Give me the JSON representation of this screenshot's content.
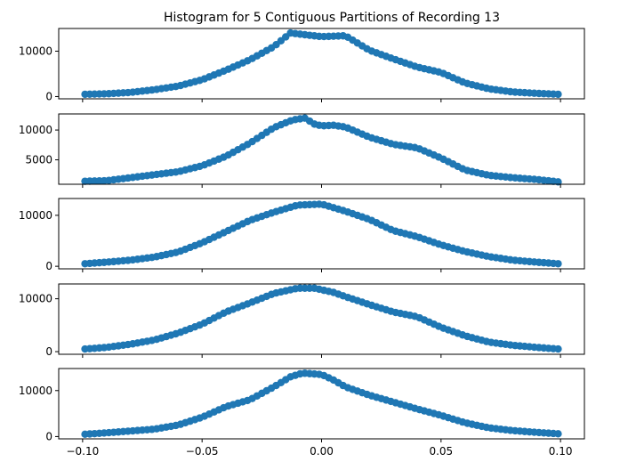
{
  "chart_data": {
    "type": "scatter",
    "title": "Histogram for 5 Contiguous Partitions of Recording 13",
    "xlabel": "",
    "ylabel": "",
    "xlim": [
      -0.11,
      0.11
    ],
    "x_ticks": [
      -0.1,
      -0.05,
      0.0,
      0.05,
      0.1
    ],
    "x_tick_labels": [
      "−0.10",
      "−0.05",
      "0.00",
      "0.05",
      "0.10"
    ],
    "marker_color": "#1f77b4",
    "grid": false,
    "x_range": [
      -0.099,
      0.099
    ],
    "n_points": 100,
    "panels": [
      {
        "ylim": [
          -500,
          15000
        ],
        "y_ticks": [
          0,
          10000
        ],
        "y_tick_labels": [
          "0",
          "10000"
        ],
        "profile": [
          [
            -0.099,
            500
          ],
          [
            -0.09,
            600
          ],
          [
            -0.08,
            900
          ],
          [
            -0.07,
            1500
          ],
          [
            -0.06,
            2300
          ],
          [
            -0.05,
            3700
          ],
          [
            -0.04,
            5800
          ],
          [
            -0.03,
            8100
          ],
          [
            -0.02,
            11000
          ],
          [
            -0.013,
            14000
          ],
          [
            -0.005,
            13500
          ],
          [
            0.0,
            13200
          ],
          [
            0.005,
            13300
          ],
          [
            0.01,
            13400
          ],
          [
            0.015,
            11800
          ],
          [
            0.02,
            10200
          ],
          [
            0.03,
            8300
          ],
          [
            0.04,
            6500
          ],
          [
            0.05,
            5300
          ],
          [
            0.06,
            3000
          ],
          [
            0.07,
            1700
          ],
          [
            0.08,
            1000
          ],
          [
            0.09,
            700
          ],
          [
            0.099,
            500
          ]
        ]
      },
      {
        "ylim": [
          900,
          12700
        ],
        "y_ticks": [
          5000,
          10000
        ],
        "y_tick_labels": [
          "5000",
          "10000"
        ],
        "profile": [
          [
            -0.099,
            1400
          ],
          [
            -0.09,
            1500
          ],
          [
            -0.08,
            2000
          ],
          [
            -0.07,
            2500
          ],
          [
            -0.06,
            3000
          ],
          [
            -0.05,
            4000
          ],
          [
            -0.04,
            5600
          ],
          [
            -0.03,
            7800
          ],
          [
            -0.02,
            10400
          ],
          [
            -0.012,
            11700
          ],
          [
            -0.007,
            12000
          ],
          [
            -0.003,
            11000
          ],
          [
            0.0,
            10700
          ],
          [
            0.005,
            10800
          ],
          [
            0.01,
            10500
          ],
          [
            0.02,
            8800
          ],
          [
            0.03,
            7600
          ],
          [
            0.035,
            7300
          ],
          [
            0.04,
            7000
          ],
          [
            0.05,
            5300
          ],
          [
            0.06,
            3300
          ],
          [
            0.07,
            2400
          ],
          [
            0.08,
            2000
          ],
          [
            0.09,
            1700
          ],
          [
            0.099,
            1300
          ]
        ]
      },
      {
        "ylim": [
          -500,
          13300
        ],
        "y_ticks": [
          0,
          10000
        ],
        "y_tick_labels": [
          "0",
          "10000"
        ],
        "profile": [
          [
            -0.099,
            500
          ],
          [
            -0.09,
            800
          ],
          [
            -0.08,
            1200
          ],
          [
            -0.07,
            1800
          ],
          [
            -0.06,
            2800
          ],
          [
            -0.05,
            4600
          ],
          [
            -0.04,
            6800
          ],
          [
            -0.03,
            9000
          ],
          [
            -0.02,
            10600
          ],
          [
            -0.01,
            12000
          ],
          [
            0.0,
            12200
          ],
          [
            0.01,
            10800
          ],
          [
            0.02,
            9200
          ],
          [
            0.03,
            7000
          ],
          [
            0.04,
            5800
          ],
          [
            0.05,
            4200
          ],
          [
            0.06,
            2900
          ],
          [
            0.07,
            1900
          ],
          [
            0.08,
            1200
          ],
          [
            0.09,
            800
          ],
          [
            0.099,
            500
          ]
        ]
      },
      {
        "ylim": [
          -500,
          12800
        ],
        "y_ticks": [
          0,
          10000
        ],
        "y_tick_labels": [
          "0",
          "10000"
        ],
        "profile": [
          [
            -0.099,
            500
          ],
          [
            -0.09,
            800
          ],
          [
            -0.08,
            1400
          ],
          [
            -0.07,
            2200
          ],
          [
            -0.06,
            3500
          ],
          [
            -0.05,
            5200
          ],
          [
            -0.04,
            7500
          ],
          [
            -0.03,
            9200
          ],
          [
            -0.02,
            11000
          ],
          [
            -0.01,
            12000
          ],
          [
            -0.003,
            12000
          ],
          [
            0.005,
            11200
          ],
          [
            0.01,
            10400
          ],
          [
            0.02,
            8900
          ],
          [
            0.03,
            7500
          ],
          [
            0.04,
            6600
          ],
          [
            0.05,
            4600
          ],
          [
            0.06,
            3000
          ],
          [
            0.07,
            1800
          ],
          [
            0.08,
            1200
          ],
          [
            0.09,
            800
          ],
          [
            0.099,
            500
          ]
        ]
      },
      {
        "ylim": [
          -500,
          14800
        ],
        "y_ticks": [
          0,
          10000
        ],
        "y_tick_labels": [
          "0",
          "10000"
        ],
        "profile": [
          [
            -0.099,
            500
          ],
          [
            -0.09,
            800
          ],
          [
            -0.08,
            1200
          ],
          [
            -0.07,
            1600
          ],
          [
            -0.06,
            2500
          ],
          [
            -0.05,
            4200
          ],
          [
            -0.04,
            6500
          ],
          [
            -0.03,
            8000
          ],
          [
            -0.02,
            10800
          ],
          [
            -0.013,
            13000
          ],
          [
            -0.008,
            13800
          ],
          [
            0.0,
            13500
          ],
          [
            0.005,
            12300
          ],
          [
            0.01,
            10800
          ],
          [
            0.02,
            9000
          ],
          [
            0.03,
            7500
          ],
          [
            0.04,
            6000
          ],
          [
            0.05,
            4600
          ],
          [
            0.06,
            3000
          ],
          [
            0.07,
            1900
          ],
          [
            0.08,
            1300
          ],
          [
            0.09,
            900
          ],
          [
            0.099,
            600
          ]
        ]
      }
    ]
  }
}
